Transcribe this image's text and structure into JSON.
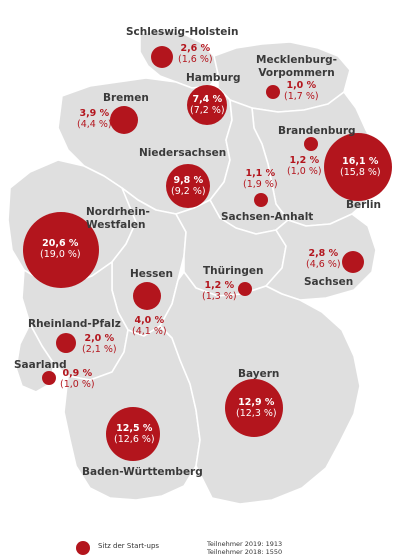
{
  "states": [
    {
      "id": "sh",
      "name": "Schleswig-Holstein",
      "value": "2,6 %",
      "prev": "(1,6 %)"
    },
    {
      "id": "mv",
      "name": "Mecklenburg-\nVorpommern",
      "value": "1,0 %",
      "prev": "(1,7 %)"
    },
    {
      "id": "hh",
      "name": "Hamburg",
      "value": "7,4 %",
      "prev": "(7,2 %)"
    },
    {
      "id": "hb",
      "name": "Bremen",
      "value": "3,9 %",
      "prev": "(4,4 %)"
    },
    {
      "id": "bb",
      "name": "Brandenburg",
      "value": "1,2 %",
      "prev": "(1,0 %)"
    },
    {
      "id": "be",
      "name": "Berlin",
      "value": "16,1 %",
      "prev": "(15,8 %)"
    },
    {
      "id": "ni",
      "name": "Niedersachsen",
      "value": "9,8 %",
      "prev": "(9,2 %)"
    },
    {
      "id": "st",
      "name": "Sachsen-Anhalt",
      "value": "1,1 %",
      "prev": "(1,9 %)"
    },
    {
      "id": "nw",
      "name": "Nordrhein-\nWestfalen",
      "value": "20,6 %",
      "prev": "(19,0 %)"
    },
    {
      "id": "he",
      "name": "Hessen",
      "value": "4,0 %",
      "prev": "(4,1 %)"
    },
    {
      "id": "th",
      "name": "Thüringen",
      "value": "1,2 %",
      "prev": "(1,3 %)"
    },
    {
      "id": "sn",
      "name": "Sachsen",
      "value": "2,8 %",
      "prev": "(4,6 %)"
    },
    {
      "id": "rp",
      "name": "Rheinland-Pfalz",
      "value": "2,0 %",
      "prev": "(2,1 %)"
    },
    {
      "id": "sl",
      "name": "Saarland",
      "value": "0,9 %",
      "prev": "(1,0 %)"
    },
    {
      "id": "by",
      "name": "Bayern",
      "value": "12,9 %",
      "prev": "(12,3 %)"
    },
    {
      "id": "bw",
      "name": "Baden-Württemberg",
      "value": "12,5 %",
      "prev": "(12,6 %)"
    }
  ],
  "legend": {
    "label": "Sitz der Start-ups"
  },
  "notes": [
    "Teilnehmer 2019: 1913",
    "Teilnehmer 2018: 1550"
  ],
  "colors": {
    "bubble": "#b3151d",
    "land": "#dfdfdf",
    "border": "#ffffff"
  }
}
